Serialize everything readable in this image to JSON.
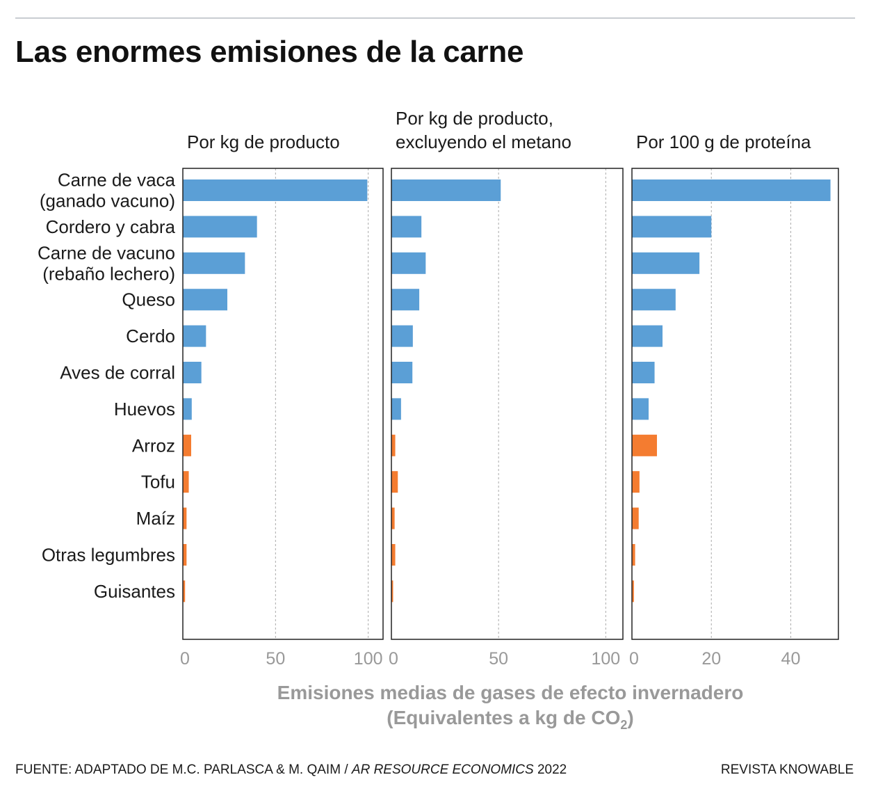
{
  "title": "Las enormes emisiones de la carne",
  "colors": {
    "animal": "#5b9fd6",
    "vegetal": "#f47c30",
    "axis_text": "#999999",
    "grid": "#aaaaaa"
  },
  "chart_data": {
    "type": "bar",
    "orientation": "horizontal",
    "categories": [
      "Carne de vaca\n(ganado vacuno)",
      "Cordero y cabra",
      "Carne de vacuno\n(rebaño lechero)",
      "Queso",
      "Cerdo",
      "Aves de corral",
      "Huevos",
      "Arroz",
      "Tofu",
      "Maíz",
      "Otras legumbres",
      "Guisantes"
    ],
    "category_group": [
      "animal",
      "animal",
      "animal",
      "animal",
      "animal",
      "animal",
      "animal",
      "vegetal",
      "vegetal",
      "vegetal",
      "vegetal",
      "vegetal"
    ],
    "xlabel": "Emisiones medias de gases de efecto invernadero",
    "xlabel_unit_prefix": "(Equivalentes a kg de CO",
    "xlabel_unit_sub": "2",
    "xlabel_unit_suffix": ")",
    "grid": true,
    "panels": [
      {
        "title": "Por kg de producto",
        "xlim": [
          0,
          108
        ],
        "ticks": [
          0,
          50,
          100
        ],
        "values": [
          99.5,
          40,
          33.5,
          24,
          12.5,
          10,
          4.8,
          4.5,
          3.2,
          2,
          2,
          1.2
        ]
      },
      {
        "title": "Por kg de producto,\nexcluyendo el metano",
        "xlim": [
          0,
          108
        ],
        "ticks": [
          0,
          50,
          100
        ],
        "values": [
          51,
          14,
          16,
          13,
          10,
          9.8,
          4.5,
          1.8,
          3,
          1.5,
          1.8,
          0.8
        ]
      },
      {
        "title": "Por 100 g de proteína",
        "xlim": [
          0,
          52
        ],
        "ticks": [
          0,
          20,
          40
        ],
        "values": [
          50,
          20,
          17,
          11,
          7.7,
          5.7,
          4.2,
          6.3,
          1.9,
          1.7,
          0.8,
          0.5
        ]
      }
    ]
  },
  "footer": {
    "source_prefix": "FUENTE: ADAPTADO DE M.C. PARLASCA & M. QAIM / ",
    "source_journal": "AR RESOURCE ECONOMICS",
    "source_year": " 2022",
    "credit": "REVISTA KNOWABLE"
  }
}
